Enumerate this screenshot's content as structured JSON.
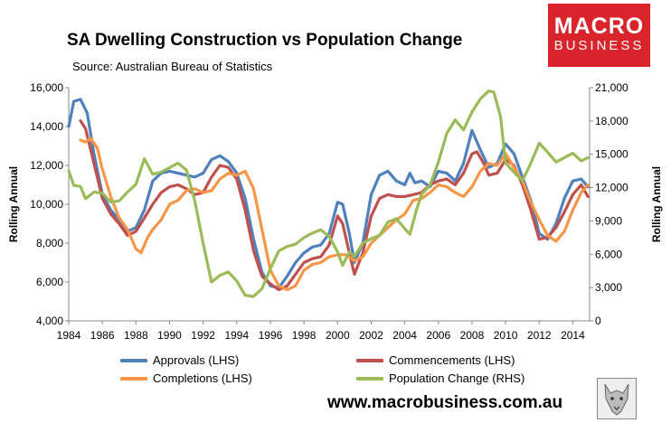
{
  "header": {
    "title": "SA Dwelling Construction vs Population Change",
    "source": "Source: Australian Bureau of Statistics",
    "logo_line1": "MACRO",
    "logo_line2": "BUSINESS",
    "website": "www.macrobusiness.com.au"
  },
  "chart_data": {
    "type": "line",
    "title": "SA Dwelling Construction vs Population Change",
    "xlim": [
      1984,
      2015
    ],
    "x_ticks": [
      "1984",
      "1986",
      "1988",
      "1990",
      "1992",
      "1994",
      "1996",
      "1998",
      "2000",
      "2002",
      "2004",
      "2006",
      "2008",
      "2010",
      "2012",
      "2014"
    ],
    "ylabel_left": "Rolling Annual",
    "ylabel_right": "Rolling Annual",
    "ylim_left": [
      4000,
      16000
    ],
    "ylim_right": [
      0,
      21000
    ],
    "y_ticks_left": [
      "4,000",
      "6,000",
      "8,000",
      "10,000",
      "12,000",
      "14,000",
      "16,000"
    ],
    "y_ticks_right": [
      "0",
      "3,000",
      "6,000",
      "9,000",
      "12,000",
      "15,000",
      "18,000",
      "21,000"
    ],
    "series": [
      {
        "name": "Approvals (LHS)",
        "axis": "left",
        "color": "#4f81bd",
        "points": [
          [
            1984,
            14000
          ],
          [
            1984.3,
            15300
          ],
          [
            1984.7,
            15400
          ],
          [
            1985.1,
            14700
          ],
          [
            1985.5,
            12600
          ],
          [
            1986,
            10500
          ],
          [
            1986.5,
            9700
          ],
          [
            1987,
            9200
          ],
          [
            1987.5,
            8600
          ],
          [
            1988,
            8800
          ],
          [
            1988.5,
            9700
          ],
          [
            1989,
            11200
          ],
          [
            1989.5,
            11600
          ],
          [
            1990,
            11700
          ],
          [
            1990.5,
            11600
          ],
          [
            1991,
            11500
          ],
          [
            1991.5,
            11400
          ],
          [
            1992,
            11600
          ],
          [
            1992.5,
            12300
          ],
          [
            1993,
            12500
          ],
          [
            1993.5,
            12200
          ],
          [
            1994,
            11600
          ],
          [
            1994.5,
            10300
          ],
          [
            1995,
            8200
          ],
          [
            1995.5,
            6500
          ],
          [
            1996,
            5800
          ],
          [
            1996.5,
            5700
          ],
          [
            1997,
            6300
          ],
          [
            1997.5,
            7000
          ],
          [
            1998,
            7500
          ],
          [
            1998.5,
            7800
          ],
          [
            1999,
            7900
          ],
          [
            1999.5,
            8500
          ],
          [
            2000,
            10100
          ],
          [
            2000.3,
            10000
          ],
          [
            2000.7,
            8500
          ],
          [
            2001,
            7000
          ],
          [
            2001.5,
            8000
          ],
          [
            2002,
            10500
          ],
          [
            2002.5,
            11500
          ],
          [
            2003,
            11700
          ],
          [
            2003.5,
            11200
          ],
          [
            2004,
            11000
          ],
          [
            2004.3,
            11600
          ],
          [
            2004.6,
            11100
          ],
          [
            2005,
            11200
          ],
          [
            2005.5,
            10900
          ],
          [
            2006,
            11700
          ],
          [
            2006.5,
            11600
          ],
          [
            2007,
            11200
          ],
          [
            2007.5,
            12100
          ],
          [
            2008,
            13800
          ],
          [
            2008.5,
            12800
          ],
          [
            2009,
            11900
          ],
          [
            2009.5,
            12100
          ],
          [
            2010,
            13100
          ],
          [
            2010.5,
            12600
          ],
          [
            2011,
            11400
          ],
          [
            2011.5,
            10200
          ],
          [
            2012,
            8500
          ],
          [
            2012.5,
            8200
          ],
          [
            2013,
            9000
          ],
          [
            2013.5,
            10300
          ],
          [
            2014,
            11200
          ],
          [
            2014.5,
            11300
          ],
          [
            2014.9,
            10900
          ]
        ]
      },
      {
        "name": "Commencements (LHS)",
        "axis": "left",
        "color": "#c0504d",
        "points": [
          [
            1984.7,
            14300
          ],
          [
            1985,
            13900
          ],
          [
            1985.5,
            12100
          ],
          [
            1986,
            10300
          ],
          [
            1986.5,
            9500
          ],
          [
            1987,
            9000
          ],
          [
            1987.5,
            8400
          ],
          [
            1988,
            8600
          ],
          [
            1988.5,
            9300
          ],
          [
            1989,
            10000
          ],
          [
            1989.5,
            10600
          ],
          [
            1990,
            10900
          ],
          [
            1990.5,
            11000
          ],
          [
            1991,
            10800
          ],
          [
            1991.5,
            10500
          ],
          [
            1992,
            10600
          ],
          [
            1992.5,
            11400
          ],
          [
            1993,
            12000
          ],
          [
            1993.5,
            11900
          ],
          [
            1994,
            11300
          ],
          [
            1994.5,
            9700
          ],
          [
            1995,
            7600
          ],
          [
            1995.5,
            6300
          ],
          [
            1996,
            5900
          ],
          [
            1996.5,
            5600
          ],
          [
            1997,
            5800
          ],
          [
            1997.5,
            6400
          ],
          [
            1998,
            7000
          ],
          [
            1998.5,
            7200
          ],
          [
            1999,
            7300
          ],
          [
            1999.5,
            7900
          ],
          [
            2000,
            9400
          ],
          [
            2000.3,
            9000
          ],
          [
            2000.7,
            7500
          ],
          [
            2001,
            6400
          ],
          [
            2001.5,
            7500
          ],
          [
            2002,
            9400
          ],
          [
            2002.5,
            10300
          ],
          [
            2003,
            10500
          ],
          [
            2003.5,
            10400
          ],
          [
            2004,
            10400
          ],
          [
            2004.5,
            10500
          ],
          [
            2005,
            10600
          ],
          [
            2005.5,
            11000
          ],
          [
            2006,
            11200
          ],
          [
            2006.5,
            11300
          ],
          [
            2007,
            11000
          ],
          [
            2007.5,
            11600
          ],
          [
            2008,
            12600
          ],
          [
            2008.3,
            12700
          ],
          [
            2008.7,
            12100
          ],
          [
            2009,
            11500
          ],
          [
            2009.5,
            11600
          ],
          [
            2010,
            12300
          ],
          [
            2010.5,
            12000
          ],
          [
            2011,
            11000
          ],
          [
            2011.5,
            9700
          ],
          [
            2012,
            8200
          ],
          [
            2012.5,
            8300
          ],
          [
            2013,
            8800
          ],
          [
            2013.5,
            9600
          ],
          [
            2014,
            10500
          ],
          [
            2014.5,
            11000
          ],
          [
            2014.9,
            10400
          ]
        ]
      },
      {
        "name": "Completions (LHS)",
        "axis": "left",
        "color": "#f79646",
        "points": [
          [
            1984.7,
            13300
          ],
          [
            1985,
            13200
          ],
          [
            1985.3,
            13400
          ],
          [
            1985.7,
            12900
          ],
          [
            1986,
            11800
          ],
          [
            1986.5,
            10400
          ],
          [
            1987,
            9300
          ],
          [
            1987.5,
            8700
          ],
          [
            1988,
            7700
          ],
          [
            1988.3,
            7500
          ],
          [
            1988.7,
            8300
          ],
          [
            1989,
            8700
          ],
          [
            1989.5,
            9200
          ],
          [
            1990,
            10000
          ],
          [
            1990.5,
            10200
          ],
          [
            1991,
            10700
          ],
          [
            1991.5,
            10800
          ],
          [
            1992,
            10600
          ],
          [
            1992.5,
            10700
          ],
          [
            1993,
            11300
          ],
          [
            1993.5,
            11600
          ],
          [
            1994,
            11500
          ],
          [
            1994.5,
            11700
          ],
          [
            1995,
            10800
          ],
          [
            1995.5,
            8700
          ],
          [
            1996,
            6600
          ],
          [
            1996.5,
            5800
          ],
          [
            1997,
            5600
          ],
          [
            1997.5,
            5800
          ],
          [
            1998,
            6600
          ],
          [
            1998.5,
            6900
          ],
          [
            1999,
            7000
          ],
          [
            1999.5,
            7300
          ],
          [
            2000,
            7400
          ],
          [
            2000.5,
            7400
          ],
          [
            2001,
            7100
          ],
          [
            2001.5,
            7300
          ],
          [
            2002,
            8000
          ],
          [
            2002.5,
            8400
          ],
          [
            2003,
            8800
          ],
          [
            2003.5,
            9200
          ],
          [
            2004,
            9500
          ],
          [
            2004.5,
            10200
          ],
          [
            2005,
            10300
          ],
          [
            2005.5,
            10600
          ],
          [
            2006,
            11000
          ],
          [
            2006.5,
            10900
          ],
          [
            2007,
            10600
          ],
          [
            2007.5,
            10400
          ],
          [
            2008,
            10900
          ],
          [
            2008.5,
            11700
          ],
          [
            2009,
            12100
          ],
          [
            2009.5,
            12000
          ],
          [
            2010,
            12600
          ],
          [
            2010.5,
            11900
          ],
          [
            2011,
            11200
          ],
          [
            2011.5,
            10100
          ],
          [
            2012,
            9200
          ],
          [
            2012.5,
            8400
          ],
          [
            2013,
            8100
          ],
          [
            2013.5,
            8600
          ],
          [
            2014,
            9700
          ],
          [
            2014.5,
            10600
          ],
          [
            2014.9,
            11000
          ]
        ]
      },
      {
        "name": "Population Change (RHS)",
        "axis": "right",
        "color": "#9bbb59",
        "points": [
          [
            1984,
            13500
          ],
          [
            1984.3,
            12200
          ],
          [
            1984.7,
            12100
          ],
          [
            1985,
            11000
          ],
          [
            1985.5,
            11600
          ],
          [
            1986,
            11500
          ],
          [
            1986.5,
            10700
          ],
          [
            1987,
            10800
          ],
          [
            1987.5,
            11600
          ],
          [
            1988,
            12300
          ],
          [
            1988.5,
            14600
          ],
          [
            1989,
            13200
          ],
          [
            1989.5,
            13400
          ],
          [
            1990,
            13800
          ],
          [
            1990.5,
            14200
          ],
          [
            1991,
            13600
          ],
          [
            1991.5,
            10800
          ],
          [
            1992,
            7000
          ],
          [
            1992.5,
            3500
          ],
          [
            1993,
            4100
          ],
          [
            1993.5,
            4400
          ],
          [
            1994,
            3600
          ],
          [
            1994.5,
            2300
          ],
          [
            1995,
            2200
          ],
          [
            1995.5,
            2900
          ],
          [
            1996,
            4700
          ],
          [
            1996.5,
            6300
          ],
          [
            1997,
            6700
          ],
          [
            1997.5,
            6900
          ],
          [
            1998,
            7500
          ],
          [
            1998.5,
            7900
          ],
          [
            1999,
            8200
          ],
          [
            1999.5,
            7600
          ],
          [
            2000,
            6200
          ],
          [
            2000.3,
            5000
          ],
          [
            2000.7,
            6200
          ],
          [
            2001,
            5800
          ],
          [
            2001.5,
            7000
          ],
          [
            2002,
            7400
          ],
          [
            2002.5,
            7700
          ],
          [
            2003,
            8900
          ],
          [
            2003.5,
            9200
          ],
          [
            2004,
            8300
          ],
          [
            2004.3,
            7800
          ],
          [
            2004.7,
            10000
          ],
          [
            2005,
            11400
          ],
          [
            2005.5,
            12200
          ],
          [
            2006,
            14300
          ],
          [
            2006.5,
            16900
          ],
          [
            2007,
            18100
          ],
          [
            2007.5,
            17200
          ],
          [
            2008,
            18800
          ],
          [
            2008.5,
            20000
          ],
          [
            2009,
            20700
          ],
          [
            2009.3,
            20600
          ],
          [
            2009.7,
            18400
          ],
          [
            2010,
            14200
          ],
          [
            2010.5,
            13400
          ],
          [
            2011,
            12600
          ],
          [
            2011.5,
            14200
          ],
          [
            2012,
            16000
          ],
          [
            2012.5,
            15200
          ],
          [
            2013,
            14300
          ],
          [
            2013.5,
            14700
          ],
          [
            2014,
            15100
          ],
          [
            2014.5,
            14400
          ],
          [
            2014.9,
            14700
          ]
        ]
      }
    ],
    "legend": [
      {
        "label": "Approvals (LHS)",
        "color": "#4f81bd"
      },
      {
        "label": "Commencements (LHS)",
        "color": "#c0504d"
      },
      {
        "label": "Completions (LHS)",
        "color": "#f79646"
      },
      {
        "label": "Population Change (RHS)",
        "color": "#9bbb59"
      }
    ]
  }
}
